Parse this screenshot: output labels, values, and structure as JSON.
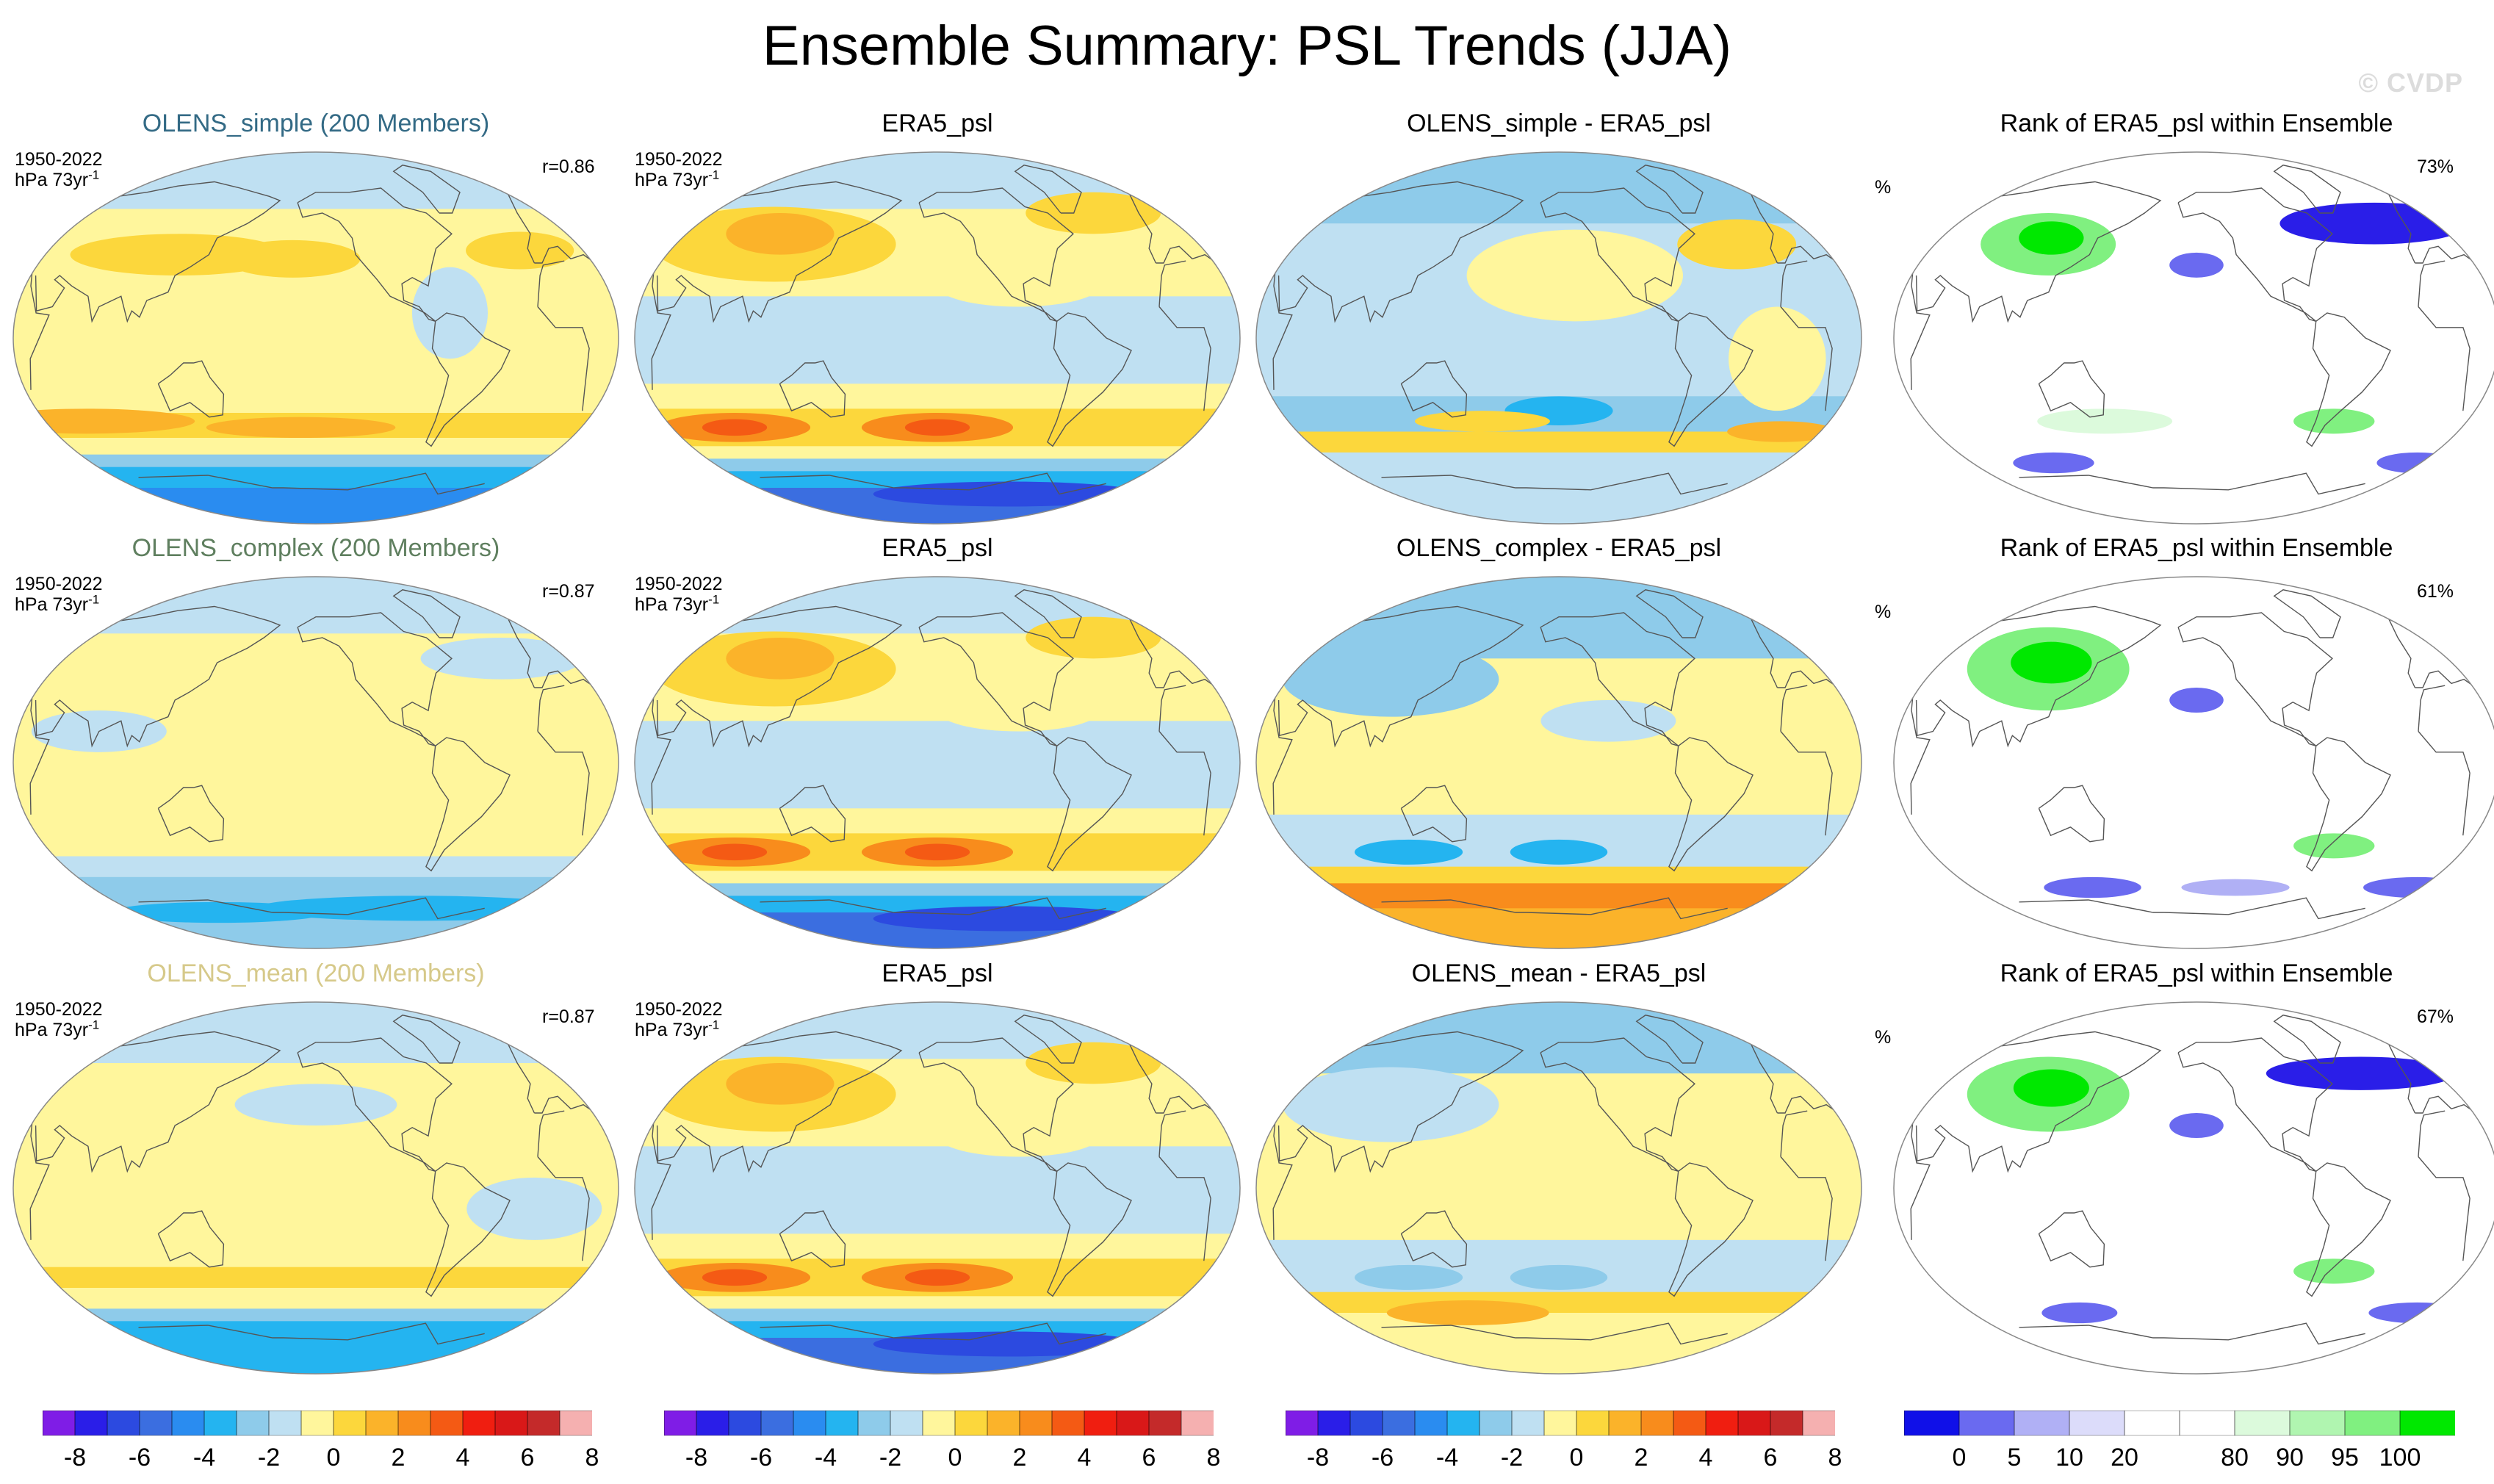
{
  "title": "Ensemble Summary: PSL Trends (JJA)",
  "watermark": "© CVDP",
  "rows": [
    {
      "ensemble_title": "OLENS_simple (200 Members)",
      "ensemble_title_color": "#336a85",
      "period": "1950-2022",
      "units": "hPa 73yr",
      "units_sup": "-1",
      "correlation": "r=0.86",
      "obs_title": "ERA5_psl",
      "obs_period": "1950-2022",
      "obs_units": "hPa 73yr",
      "obs_units_sup": "-1",
      "diff_title": "OLENS_simple - ERA5_psl",
      "rank_title": "Rank of ERA5_psl within Ensemble",
      "rank_units": "%",
      "rank_percent": "73%"
    },
    {
      "ensemble_title": "OLENS_complex (200 Members)",
      "ensemble_title_color": "#5f7f5f",
      "period": "1950-2022",
      "units": "hPa 73yr",
      "units_sup": "-1",
      "correlation": "r=0.87",
      "obs_title": "ERA5_psl",
      "obs_period": "1950-2022",
      "obs_units": "hPa 73yr",
      "obs_units_sup": "-1",
      "diff_title": "OLENS_complex - ERA5_psl",
      "rank_title": "Rank of ERA5_psl within Ensemble",
      "rank_units": "%",
      "rank_percent": "61%"
    },
    {
      "ensemble_title": "OLENS_mean (200 Members)",
      "ensemble_title_color": "#d6c98a",
      "period": "1950-2022",
      "units": "hPa 73yr",
      "units_sup": "-1",
      "correlation": "r=0.87",
      "obs_title": "ERA5_psl",
      "obs_period": "1950-2022",
      "obs_units": "hPa 73yr",
      "obs_units_sup": "-1",
      "diff_title": "OLENS_mean - ERA5_psl",
      "rank_title": "Rank of ERA5_psl within Ensemble",
      "rank_units": "%",
      "rank_percent": "67%"
    }
  ],
  "trend_colorbar": {
    "colors": [
      "#7f1de6",
      "#2a1ee8",
      "#2c4ae0",
      "#3b6ee0",
      "#2a8cf0",
      "#24b4f0",
      "#8ecbea",
      "#bfe0f2",
      "#fff69c",
      "#fcd73c",
      "#fbb32a",
      "#f88c1c",
      "#f45a14",
      "#f01e10",
      "#d91818",
      "#c42a2a",
      "#f5b0b0"
    ],
    "labels": [
      "-8",
      "-6",
      "-4",
      "-2",
      "0",
      "2",
      "4",
      "6",
      "8"
    ]
  },
  "rank_colorbar": {
    "colors": [
      "#1010e8",
      "#6a6af0",
      "#b0b0f5",
      "#dcdcfa",
      "#ffffff",
      "#ffffff",
      "#dcfadc",
      "#b0f5b0",
      "#80f080",
      "#00e800"
    ],
    "labels": [
      "0",
      "5",
      "10",
      "20",
      "80",
      "90",
      "95",
      "100"
    ]
  },
  "fields": {
    "ensemble": [
      {
        "bands": [
          {
            "lat": [
              90,
              62
            ],
            "c": "#bfe0f2"
          },
          {
            "lat": [
              62,
              -36
            ],
            "c": "#fff69c"
          },
          {
            "lat": [
              -36,
              -48
            ],
            "c": "#fcd73c"
          },
          {
            "lat": [
              -48,
              -56
            ],
            "c": "#fff69c"
          },
          {
            "lat": [
              -56,
              -62
            ],
            "c": "#8ecbea"
          },
          {
            "lat": [
              -62,
              -72
            ],
            "c": "#24b4f0"
          },
          {
            "lat": [
              -72,
              -90
            ],
            "c": "#2a8cf0"
          }
        ],
        "blobs": [
          {
            "lon": 120,
            "lat": 40,
            "rx": 40,
            "ry": 10,
            "c": "#fcd73c"
          },
          {
            "lon": -165,
            "lat": 38,
            "rx": 25,
            "ry": 9,
            "c": "#fcd73c"
          },
          {
            "lon": -70,
            "lat": 12,
            "rx": 14,
            "ry": 22,
            "c": "#bfe0f2"
          },
          {
            "lon": -15,
            "lat": 42,
            "rx": 20,
            "ry": 9,
            "c": "#fcd73c"
          },
          {
            "lon": 60,
            "lat": -40,
            "rx": 40,
            "ry": 6,
            "c": "#fbb32a"
          },
          {
            "lon": -160,
            "lat": -43,
            "rx": 35,
            "ry": 5,
            "c": "#fbb32a"
          }
        ]
      },
      {
        "bands": [
          {
            "lat": [
              90,
              62
            ],
            "c": "#bfe0f2"
          },
          {
            "lat": [
              62,
              -45
            ],
            "c": "#fff69c"
          },
          {
            "lat": [
              -45,
              -55
            ],
            "c": "#bfe0f2"
          },
          {
            "lat": [
              -55,
              -64
            ],
            "c": "#8ecbea"
          },
          {
            "lat": [
              -64,
              -90
            ],
            "c": "#8ecbea"
          }
        ],
        "blobs": [
          {
            "lon": 80,
            "lat": 15,
            "rx": 25,
            "ry": 10,
            "c": "#bfe0f2"
          },
          {
            "lon": -20,
            "lat": 50,
            "rx": 30,
            "ry": 10,
            "c": "#bfe0f2"
          },
          {
            "lon": -60,
            "lat": -70,
            "rx": 60,
            "ry": 6,
            "c": "#24b4f0"
          },
          {
            "lon": 120,
            "lat": -72,
            "rx": 40,
            "ry": 5,
            "c": "#24b4f0"
          }
        ]
      },
      {
        "bands": [
          {
            "lat": [
              90,
              60
            ],
            "c": "#bfe0f2"
          },
          {
            "lat": [
              60,
              -38
            ],
            "c": "#fff69c"
          },
          {
            "lat": [
              -38,
              -48
            ],
            "c": "#fcd73c"
          },
          {
            "lat": [
              -48,
              -58
            ],
            "c": "#fff69c"
          },
          {
            "lat": [
              -58,
              -64
            ],
            "c": "#8ecbea"
          },
          {
            "lat": [
              -64,
              -90
            ],
            "c": "#24b4f0"
          }
        ],
        "blobs": [
          {
            "lon": -150,
            "lat": 40,
            "rx": 30,
            "ry": 10,
            "c": "#bfe0f2"
          },
          {
            "lon": -20,
            "lat": -10,
            "rx": 25,
            "ry": 15,
            "c": "#bfe0f2"
          },
          {
            "lon": 90,
            "lat": -43,
            "rx": 30,
            "ry": 4,
            "c": "#fcd73c"
          }
        ]
      }
    ],
    "obs": {
      "bands": [
        {
          "lat": [
            90,
            62
          ],
          "c": "#bfe0f2"
        },
        {
          "lat": [
            62,
            20
          ],
          "c": "#fff69c"
        },
        {
          "lat": [
            20,
            -22
          ],
          "c": "#bfe0f2"
        },
        {
          "lat": [
            -22,
            -34
          ],
          "c": "#fff69c"
        },
        {
          "lat": [
            -34,
            -52
          ],
          "c": "#fcd73c"
        },
        {
          "lat": [
            -52,
            -58
          ],
          "c": "#fff69c"
        },
        {
          "lat": [
            -58,
            -64
          ],
          "c": "#8ecbea"
        },
        {
          "lat": [
            -64,
            -72
          ],
          "c": "#24b4f0"
        },
        {
          "lat": [
            -72,
            -90
          ],
          "c": "#3b6ee0"
        }
      ],
      "blobs": [
        {
          "lon": 100,
          "lat": 45,
          "rx": 45,
          "ry": 18,
          "c": "#fcd73c"
        },
        {
          "lon": 100,
          "lat": 50,
          "rx": 20,
          "ry": 10,
          "c": "#fbb32a"
        },
        {
          "lon": 75,
          "lat": -43,
          "rx": 28,
          "ry": 7,
          "c": "#f88c1c"
        },
        {
          "lon": -150,
          "lat": -43,
          "rx": 28,
          "ry": 7,
          "c": "#f88c1c"
        },
        {
          "lon": -150,
          "lat": -43,
          "rx": 12,
          "ry": 4,
          "c": "#f45a14"
        },
        {
          "lon": 75,
          "lat": -43,
          "rx": 12,
          "ry": 4,
          "c": "#f45a14"
        },
        {
          "lon": -100,
          "lat": 25,
          "rx": 30,
          "ry": 10,
          "c": "#fff69c"
        },
        {
          "lon": -30,
          "lat": 60,
          "rx": 25,
          "ry": 10,
          "c": "#fcd73c"
        },
        {
          "lon": -80,
          "lat": -75,
          "rx": 50,
          "ry": 6,
          "c": "#2c4ae0"
        }
      ]
    },
    "diff": [
      {
        "bands": [
          {
            "lat": [
              90,
              55
            ],
            "c": "#8ecbea"
          },
          {
            "lat": [
              55,
              -28
            ],
            "c": "#bfe0f2"
          },
          {
            "lat": [
              -28,
              -45
            ],
            "c": "#8ecbea"
          },
          {
            "lat": [
              -45,
              -55
            ],
            "c": "#fcd73c"
          },
          {
            "lat": [
              -55,
              -90
            ],
            "c": "#bfe0f2"
          }
        ],
        "blobs": [
          {
            "lon": -140,
            "lat": 30,
            "rx": 40,
            "ry": 22,
            "c": "#fff69c"
          },
          {
            "lon": -20,
            "lat": -10,
            "rx": 18,
            "ry": 25,
            "c": "#fff69c"
          },
          {
            "lon": -30,
            "lat": 45,
            "rx": 22,
            "ry": 12,
            "c": "#fcd73c"
          },
          {
            "lon": -150,
            "lat": -35,
            "rx": 20,
            "ry": 7,
            "c": "#24b4f0"
          },
          {
            "lon": 160,
            "lat": -40,
            "rx": 25,
            "ry": 5,
            "c": "#fcd73c"
          },
          {
            "lon": 0,
            "lat": -45,
            "rx": 20,
            "ry": 5,
            "c": "#fbb32a"
          }
        ]
      },
      {
        "bands": [
          {
            "lat": [
              90,
              50
            ],
            "c": "#8ecbea"
          },
          {
            "lat": [
              50,
              -25
            ],
            "c": "#fff69c"
          },
          {
            "lat": [
              -25,
              -50
            ],
            "c": "#bfe0f2"
          },
          {
            "lat": [
              -50,
              -58
            ],
            "c": "#fcd73c"
          },
          {
            "lat": [
              -58,
              -70
            ],
            "c": "#f88c1c"
          },
          {
            "lat": [
              -70,
              -90
            ],
            "c": "#fbb32a"
          }
        ],
        "blobs": [
          {
            "lon": 100,
            "lat": 40,
            "rx": 40,
            "ry": 18,
            "c": "#8ecbea"
          },
          {
            "lon": 110,
            "lat": -43,
            "rx": 20,
            "ry": 6,
            "c": "#24b4f0"
          },
          {
            "lon": -150,
            "lat": -43,
            "rx": 18,
            "ry": 6,
            "c": "#24b4f0"
          },
          {
            "lon": -120,
            "lat": 20,
            "rx": 25,
            "ry": 10,
            "c": "#bfe0f2"
          }
        ]
      },
      {
        "bands": [
          {
            "lat": [
              90,
              55
            ],
            "c": "#8ecbea"
          },
          {
            "lat": [
              55,
              -25
            ],
            "c": "#fff69c"
          },
          {
            "lat": [
              -25,
              -50
            ],
            "c": "#bfe0f2"
          },
          {
            "lat": [
              -50,
              -60
            ],
            "c": "#fcd73c"
          },
          {
            "lat": [
              -60,
              -90
            ],
            "c": "#fff69c"
          }
        ],
        "blobs": [
          {
            "lon": 100,
            "lat": 40,
            "rx": 40,
            "ry": 18,
            "c": "#bfe0f2"
          },
          {
            "lon": 110,
            "lat": -43,
            "rx": 20,
            "ry": 6,
            "c": "#8ecbea"
          },
          {
            "lon": -150,
            "lat": -43,
            "rx": 18,
            "ry": 6,
            "c": "#8ecbea"
          },
          {
            "lon": 140,
            "lat": -60,
            "rx": 30,
            "ry": 6,
            "c": "#fbb32a"
          }
        ]
      }
    ],
    "rank": [
      {
        "bands": [
          {
            "lat": [
              90,
              -90
            ],
            "c": "#ffffff"
          }
        ],
        "blobs": [
          {
            "lon": 110,
            "lat": 45,
            "rx": 25,
            "ry": 15,
            "c": "#80f080"
          },
          {
            "lon": 110,
            "lat": 48,
            "rx": 12,
            "ry": 8,
            "c": "#00e800"
          },
          {
            "lon": -20,
            "lat": 55,
            "rx": 35,
            "ry": 10,
            "c": "#2a1ee8"
          },
          {
            "lon": -150,
            "lat": 35,
            "rx": 10,
            "ry": 6,
            "c": "#6a6af0"
          },
          {
            "lon": 150,
            "lat": -40,
            "rx": 25,
            "ry": 6,
            "c": "#dcfadc"
          },
          {
            "lon": -60,
            "lat": -40,
            "rx": 15,
            "ry": 6,
            "c": "#80f080"
          },
          {
            "lon": 20,
            "lat": -60,
            "rx": 15,
            "ry": 5,
            "c": "#6a6af0"
          },
          {
            "lon": 100,
            "lat": -60,
            "rx": 15,
            "ry": 5,
            "c": "#6a6af0"
          }
        ]
      },
      {
        "bands": [
          {
            "lat": [
              90,
              -90
            ],
            "c": "#ffffff"
          }
        ],
        "blobs": [
          {
            "lon": 110,
            "lat": 45,
            "rx": 30,
            "ry": 20,
            "c": "#80f080"
          },
          {
            "lon": 110,
            "lat": 48,
            "rx": 15,
            "ry": 10,
            "c": "#00e800"
          },
          {
            "lon": -150,
            "lat": 30,
            "rx": 10,
            "ry": 6,
            "c": "#6a6af0"
          },
          {
            "lon": -60,
            "lat": -40,
            "rx": 15,
            "ry": 6,
            "c": "#80f080"
          },
          {
            "lon": 20,
            "lat": -60,
            "rx": 20,
            "ry": 5,
            "c": "#6a6af0"
          },
          {
            "lon": 130,
            "lat": -60,
            "rx": 18,
            "ry": 5,
            "c": "#6a6af0"
          },
          {
            "lon": -120,
            "lat": -60,
            "rx": 20,
            "ry": 4,
            "c": "#b0b0f5"
          }
        ]
      },
      {
        "bands": [
          {
            "lat": [
              90,
              -90
            ],
            "c": "#ffffff"
          }
        ],
        "blobs": [
          {
            "lon": 110,
            "lat": 45,
            "rx": 30,
            "ry": 18,
            "c": "#80f080"
          },
          {
            "lon": 110,
            "lat": 48,
            "rx": 14,
            "ry": 9,
            "c": "#00e800"
          },
          {
            "lon": -30,
            "lat": 55,
            "rx": 35,
            "ry": 8,
            "c": "#2a1ee8"
          },
          {
            "lon": -150,
            "lat": 30,
            "rx": 10,
            "ry": 6,
            "c": "#6a6af0"
          },
          {
            "lon": -60,
            "lat": -40,
            "rx": 15,
            "ry": 6,
            "c": "#80f080"
          },
          {
            "lon": 20,
            "lat": -60,
            "rx": 18,
            "ry": 5,
            "c": "#6a6af0"
          },
          {
            "lon": 120,
            "lat": -60,
            "rx": 14,
            "ry": 5,
            "c": "#6a6af0"
          }
        ]
      }
    ]
  }
}
